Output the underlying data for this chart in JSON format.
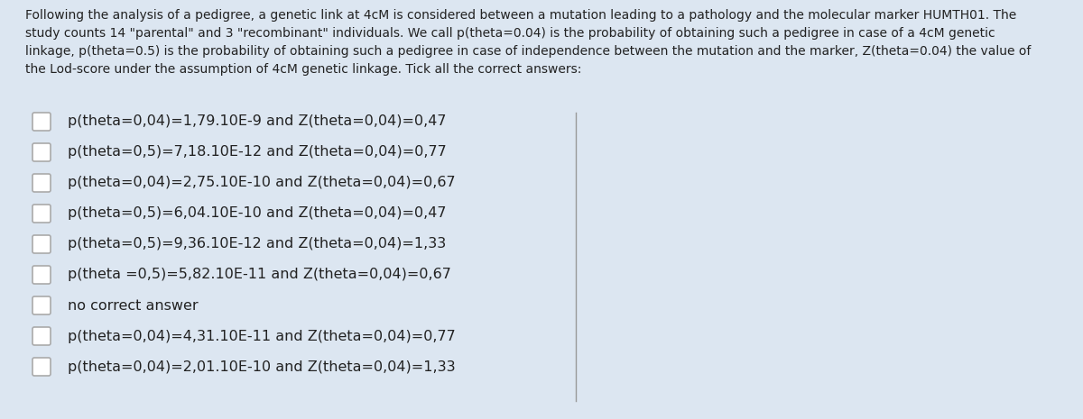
{
  "background_color": "#dce6f1",
  "header_bg_color": "#dce6f1",
  "body_bg_color": "#dce6f1",
  "header_text_lines": [
    "Following the analysis of a pedigree, a genetic link at 4cM is considered between a mutation leading to a pathology and the molecular marker HUMTH01. The",
    "study counts 14 \"parental\" and 3 \"recombinant\" individuals. We call p(theta=0.04) is the probability of obtaining such a pedigree in case of a 4cM genetic",
    "linkage, p(theta=0.5) is the probability of obtaining such a pedigree in case of independence between the mutation and the marker, Z(theta=0.04) the value of",
    "the Lod-score under the assumption of 4cM genetic linkage. Tick all the correct answers:"
  ],
  "options": [
    "p(theta=0,04)=1,79.10E-9 and Z(theta=0,04)=0,47",
    "p(theta=0,5)=7,18.10E-12 and Z(theta=0,04)=0,77",
    "p(theta=0,04)=2,75.10E-10 and Z(theta=0,04)=0,67",
    "p(theta=0,5)=6,04.10E-10 and Z(theta=0,04)=0,47",
    "p(theta=0,5)=9,36.10E-12 and Z(theta=0,04)=1,33",
    "p(theta =0,5)=5,82.10E-11 and Z(theta=0,04)=0,67",
    "no correct answer",
    "p(theta=0,04)=4,31.10E-11 and Z(theta=0,04)=0,77",
    "p(theta=0,04)=2,01.10E-10 and Z(theta=0,04)=1,33"
  ],
  "checkbox_color": "#ffffff",
  "checkbox_edge_color": "#aaaaaa",
  "text_color": "#222222",
  "header_font_size": 10.0,
  "option_font_size": 11.5,
  "divider_color": "#999999"
}
